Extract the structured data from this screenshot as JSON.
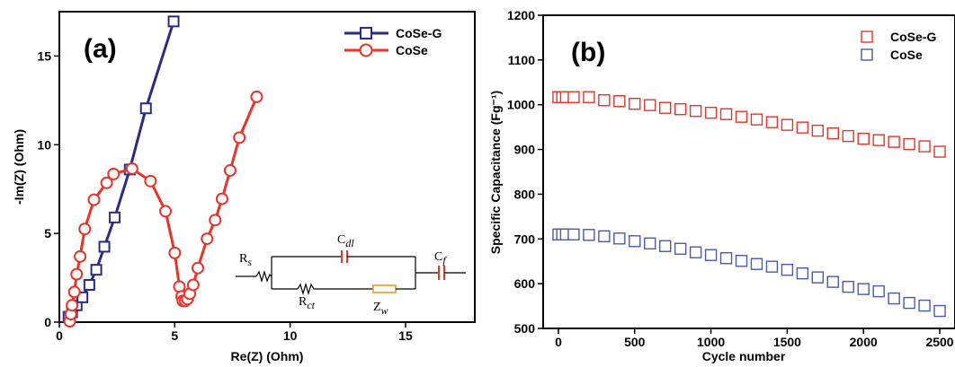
{
  "chart_data": [
    {
      "type": "scatter",
      "panel_label": "(a)",
      "xlabel": "Re(Z)  (Ohm)",
      "ylabel": "-Im(Z) (Ohm)",
      "xlim": [
        0,
        18
      ],
      "ylim": [
        0,
        17.5
      ],
      "xticks": [
        "0",
        "5",
        "10",
        "15"
      ],
      "yticks": [
        "0",
        "5",
        "10",
        "15"
      ],
      "legend_position": "top-right",
      "series": [
        {
          "name": "CoSe-G",
          "color": "#2b2b80",
          "marker": "square",
          "points": [
            [
              0.4,
              0.3
            ],
            [
              0.55,
              0.55
            ],
            [
              0.75,
              0.95
            ],
            [
              1.0,
              1.4
            ],
            [
              1.3,
              2.1
            ],
            [
              1.6,
              2.95
            ],
            [
              1.95,
              4.25
            ],
            [
              2.4,
              5.9
            ],
            [
              3.05,
              8.6
            ],
            [
              3.75,
              12.05
            ],
            [
              4.95,
              16.95
            ]
          ]
        },
        {
          "name": "CoSe",
          "color": "#e8342a",
          "marker": "circle",
          "points": [
            [
              0.45,
              0.05
            ],
            [
              0.5,
              0.45
            ],
            [
              0.55,
              0.95
            ],
            [
              0.65,
              1.7
            ],
            [
              0.75,
              2.7
            ],
            [
              0.9,
              3.7
            ],
            [
              1.1,
              5.25
            ],
            [
              1.5,
              6.9
            ],
            [
              2.05,
              7.85
            ],
            [
              2.35,
              8.35
            ],
            [
              3.15,
              8.65
            ],
            [
              3.95,
              7.95
            ],
            [
              4.6,
              6.25
            ],
            [
              5.0,
              3.9
            ],
            [
              5.2,
              2.0
            ],
            [
              5.3,
              1.45
            ],
            [
              5.35,
              1.2
            ],
            [
              5.45,
              1.2
            ],
            [
              5.55,
              1.3
            ],
            [
              5.65,
              1.6
            ],
            [
              5.8,
              2.1
            ],
            [
              6.0,
              3.05
            ],
            [
              6.4,
              4.7
            ],
            [
              6.75,
              5.75
            ],
            [
              7.05,
              6.95
            ],
            [
              7.4,
              8.55
            ],
            [
              7.8,
              10.4
            ],
            [
              8.55,
              12.7
            ]
          ]
        }
      ]
    },
    {
      "type": "scatter",
      "panel_label": "(b)",
      "xlabel": "Cycle number",
      "ylabel": "Specific Capacitance (Fg⁻¹)",
      "xlim": [
        -100,
        2600
      ],
      "ylim": [
        500,
        1200
      ],
      "xticks": [
        "0",
        "500",
        "1000",
        "1500",
        "2000",
        "2500"
      ],
      "yticks": [
        "500",
        "600",
        "700",
        "800",
        "900",
        "1000",
        "1100",
        "1200"
      ],
      "legend_position": "top-right",
      "series": [
        {
          "name": "CoSe-G",
          "color": "#e8342a",
          "marker": "square",
          "points": [
            [
              0,
              1017
            ],
            [
              25,
              1017
            ],
            [
              50,
              1017
            ],
            [
              100,
              1017
            ],
            [
              200,
              1017
            ],
            [
              300,
              1010
            ],
            [
              400,
              1008
            ],
            [
              500,
              1002
            ],
            [
              600,
              999
            ],
            [
              700,
              993
            ],
            [
              800,
              990
            ],
            [
              900,
              986
            ],
            [
              1000,
              982
            ],
            [
              1100,
              979
            ],
            [
              1200,
              973
            ],
            [
              1300,
              967
            ],
            [
              1400,
              961
            ],
            [
              1500,
              955
            ],
            [
              1600,
              949
            ],
            [
              1700,
              942
            ],
            [
              1800,
              936
            ],
            [
              1900,
              930
            ],
            [
              2000,
              924
            ],
            [
              2100,
              921
            ],
            [
              2200,
              917
            ],
            [
              2300,
              912
            ],
            [
              2400,
              907
            ],
            [
              2500,
              895
            ]
          ]
        },
        {
          "name": "CoSe",
          "color": "#4a5ab0",
          "marker": "square",
          "points": [
            [
              0,
              710
            ],
            [
              25,
              710
            ],
            [
              50,
              710
            ],
            [
              100,
              710
            ],
            [
              200,
              709
            ],
            [
              300,
              706
            ],
            [
              400,
              701
            ],
            [
              500,
              695
            ],
            [
              600,
              690
            ],
            [
              700,
              684
            ],
            [
              800,
              678
            ],
            [
              900,
              670
            ],
            [
              1000,
              664
            ],
            [
              1100,
              657
            ],
            [
              1200,
              651
            ],
            [
              1300,
              644
            ],
            [
              1400,
              638
            ],
            [
              1500,
              631
            ],
            [
              1600,
              623
            ],
            [
              1700,
              614
            ],
            [
              1800,
              604
            ],
            [
              1900,
              593
            ],
            [
              2000,
              588
            ],
            [
              2100,
              583
            ],
            [
              2200,
              567
            ],
            [
              2300,
              557
            ],
            [
              2400,
              551
            ],
            [
              2500,
              539
            ]
          ]
        }
      ]
    }
  ],
  "inset_circuit": {
    "labels": {
      "rs": "R",
      "rs_sub": "s",
      "cdl": "C",
      "cdl_sub": "dl",
      "cf": "C",
      "cf_sub": "f",
      "rct": "R",
      "rct_sub": "ct",
      "zw": "Z",
      "zw_sub": "w"
    },
    "component_color": "#e8342a",
    "warburg_color": "#f0a040"
  }
}
